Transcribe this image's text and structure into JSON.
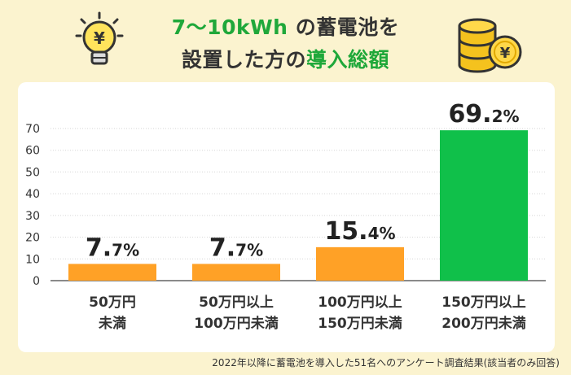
{
  "title": {
    "line1_accent": "7〜10kWh",
    "line1_rest": "の蓄電池を",
    "line2_rest": "設置した方の",
    "line2_accent": "導入総額"
  },
  "icons": {
    "bulb_symbol": "¥",
    "coins_symbol": "¥"
  },
  "colors": {
    "background": "#fbf3cf",
    "orange": "#ffa126",
    "green": "#10c04a",
    "title_accent": "#1fa83a"
  },
  "chart_data": {
    "type": "bar",
    "categories": [
      [
        "50万円",
        "未満"
      ],
      [
        "50万円以上",
        "100万円未満"
      ],
      [
        "100万円以上",
        "150万円未満"
      ],
      [
        "150万円以上",
        "200万円未満"
      ]
    ],
    "values": [
      7.7,
      7.7,
      15.4,
      69.2
    ],
    "value_labels": [
      {
        "int": "7.",
        "dec": "7%"
      },
      {
        "int": "7.",
        "dec": "7%"
      },
      {
        "int": "15.",
        "dec": "4%"
      },
      {
        "int": "69.",
        "dec": "2%"
      }
    ],
    "bar_colors": [
      "#ffa126",
      "#ffa126",
      "#ffa126",
      "#10c04a"
    ],
    "yticks": [
      0,
      10,
      20,
      30,
      40,
      50,
      60,
      70
    ],
    "ylim": [
      0,
      70
    ],
    "grid": true
  },
  "footnote": "2022年以降に蓄電池を導入した51名へのアンケート調査結果(該当者のみ回答)"
}
